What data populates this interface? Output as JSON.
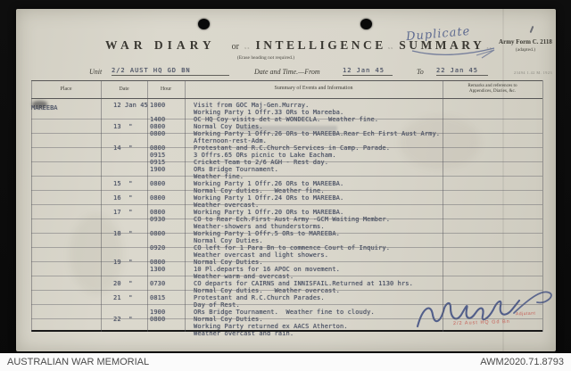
{
  "form": {
    "form_number": "Army Form C. 2118",
    "adapted": "(adapted.)",
    "print_code": "23494  1.42  M. 1923",
    "title_war_diary": "WAR DIARY",
    "title_or": "or",
    "title_intelligence": "INTELLIGENCE",
    "title_summary": "SUMMARY",
    "xmarks": "xx",
    "subtitle": "(Erase heading not required.)",
    "unit_label": "Unit",
    "unit_value": "2/2 AUST HQ GD BN",
    "date_label": "Date and Time.—From",
    "date_from": "12 Jan 45",
    "to_label": "To",
    "date_to": "22 Jan 45"
  },
  "annotations": {
    "duplicate_note": "Duplicate",
    "stamp_line1": "Adjutant",
    "stamp_line2": "2/2 Aust HQ Gd Bn"
  },
  "table": {
    "headers": {
      "place": "Place",
      "date": "Date",
      "hour": "Hour",
      "summary": "Summary of Events and Information",
      "remarks_line1": "Remarks and references to",
      "remarks_line2": "Appendices, Diaries, &c."
    },
    "place_value": "MAREEBA",
    "rows": [
      {
        "date": "12 Jan 45",
        "hour": "1000",
        "text": "Visit from GOC Maj-Gen.Murray."
      },
      {
        "date": "",
        "hour": "",
        "text": "Working Party 1 Offr.33 ORs to Mareeba."
      },
      {
        "date": "",
        "hour": "1400",
        "text": "OC HQ Coy visits det at WONDECLA.  Weather fine."
      },
      {
        "date": "13  \"",
        "hour": "0800",
        "text": "Normal Coy Duties."
      },
      {
        "date": "",
        "hour": "0800",
        "text": "Working Party 1 Offr.26 ORs to MAREEBA.Rear Ech First Aust Army."
      },
      {
        "date": "",
        "hour": "",
        "text": "Afternoon-rest-Adm."
      },
      {
        "date": "14  \"",
        "hour": "0800",
        "text": "Protestant and R.C.Church Services in Camp. Parade."
      },
      {
        "date": "",
        "hour": "0915",
        "text": "3 Offrs.65 ORs picnic to Lake Eacham."
      },
      {
        "date": "",
        "hour": "0915",
        "text": "Cricket Team to 2/6 AGH - Rest day."
      },
      {
        "date": "",
        "hour": "1900",
        "text": "ORs Bridge Tournament."
      },
      {
        "date": "",
        "hour": "",
        "text": "Weather fine."
      },
      {
        "date": "15  \"",
        "hour": "0800",
        "text": "Working Party 1 Offr.26 ORs to MAREEBA."
      },
      {
        "date": "",
        "hour": "",
        "text": "Normal Coy duties.   Weather fine."
      },
      {
        "date": "16  \"",
        "hour": "0800",
        "text": "Working Party 1 Offr.24 ORs to MAREEBA."
      },
      {
        "date": "",
        "hour": "",
        "text": "Weather overcast."
      },
      {
        "date": "17  \"",
        "hour": "0800",
        "text": "Working Party 1 Offr.20 ORs to MAREEBA."
      },
      {
        "date": "",
        "hour": "0930",
        "text": "CO to Rear Ech.First Aust Army -GCM Waiting Member."
      },
      {
        "date": "",
        "hour": "",
        "text": "Weather-showers and thunderstorms."
      },
      {
        "date": "18  \"",
        "hour": "0800",
        "text": "Working Party 1 Offr.5 ORs to MAREEBA."
      },
      {
        "date": "",
        "hour": "",
        "text": "Normal Coy Duties."
      },
      {
        "date": "",
        "hour": "0920",
        "text": "CO left for 1 Para Bn to commence Court of Inquiry."
      },
      {
        "date": "",
        "hour": "",
        "text": "Weather overcast and light showers."
      },
      {
        "date": "19  \"",
        "hour": "0800",
        "text": "Normal Coy Duties."
      },
      {
        "date": "",
        "hour": "1300",
        "text": "10 Pl.departs for 16 APOC on movement."
      },
      {
        "date": "",
        "hour": "",
        "text": "Weather warm and overcast."
      },
      {
        "date": "20  \"",
        "hour": "0730",
        "text": "CO departs for CAIRNS and INNISFAIL.Returned at 1130 hrs."
      },
      {
        "date": "",
        "hour": "",
        "text": "Normal Coy duties.   Weather overcast."
      },
      {
        "date": "21  \"",
        "hour": "0815",
        "text": "Protestant and R.C.Church Parades."
      },
      {
        "date": "",
        "hour": "",
        "text": "Day of Rest."
      },
      {
        "date": "",
        "hour": "1900",
        "text": "ORs Bridge Tournament.  Weather fine to cloudy."
      },
      {
        "date": "22  \"",
        "hour": "0800",
        "text": "Normal Coy Duties."
      },
      {
        "date": "",
        "hour": "",
        "text": "Working Party returned ex AACS Atherton."
      },
      {
        "date": "",
        "hour": "",
        "text": "Weather overcast and rain."
      }
    ]
  },
  "footer": {
    "left": "AUSTRALIAN WAR MEMORIAL",
    "right": "AWM2020.71.8793"
  }
}
